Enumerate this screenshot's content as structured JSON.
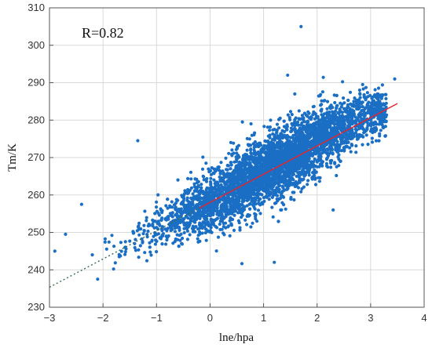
{
  "chart_data": {
    "type": "scatter",
    "title": "",
    "xlabel": "lne/hpa",
    "ylabel": "Tm/K",
    "xlim": [
      -3,
      4
    ],
    "ylim": [
      230,
      310
    ],
    "xticks": [
      "−3",
      "−2",
      "−1",
      "0",
      "1",
      "2",
      "3",
      "4"
    ],
    "yticks": [
      "230",
      "240",
      "250",
      "260",
      "270",
      "280",
      "290",
      "300",
      "310"
    ],
    "grid": true,
    "annotation": "R=0.82",
    "colors": {
      "points": "#1a6fc4",
      "fit_line": "#e8232a",
      "fit_line_dark": "#3a6d4a",
      "frame": "#555555",
      "grid": "#d9d9d9"
    },
    "fit_line": {
      "slope": 7.55,
      "intercept": 258.0,
      "x_range": [
        -3.0,
        3.5
      ]
    },
    "cloud": {
      "description_points": "dense point cloud",
      "centers": [
        {
          "x": -1.8,
          "y": 245.5,
          "spread_y": 3.5
        },
        {
          "x": -1.0,
          "y": 251.0,
          "spread_y": 5.0
        },
        {
          "x": 0.0,
          "y": 258.0,
          "spread_y": 6.5
        },
        {
          "x": 1.0,
          "y": 266.0,
          "spread_y": 7.5
        },
        {
          "x": 2.0,
          "y": 274.5,
          "spread_y": 7.0
        },
        {
          "x": 3.0,
          "y": 282.0,
          "spread_y": 5.0
        }
      ],
      "outliers": [
        {
          "x": -2.9,
          "y": 245.0
        },
        {
          "x": -2.7,
          "y": 249.5
        },
        {
          "x": -2.4,
          "y": 257.5
        },
        {
          "x": -2.2,
          "y": 244.0
        },
        {
          "x": -2.1,
          "y": 237.5
        },
        {
          "x": -1.35,
          "y": 274.5
        },
        {
          "x": 1.7,
          "y": 305.0
        },
        {
          "x": 1.45,
          "y": 292.0
        },
        {
          "x": 2.3,
          "y": 256.0
        },
        {
          "x": 1.2,
          "y": 242.0
        },
        {
          "x": -0.6,
          "y": 264.0
        },
        {
          "x": 3.45,
          "y": 291.0
        }
      ]
    }
  }
}
